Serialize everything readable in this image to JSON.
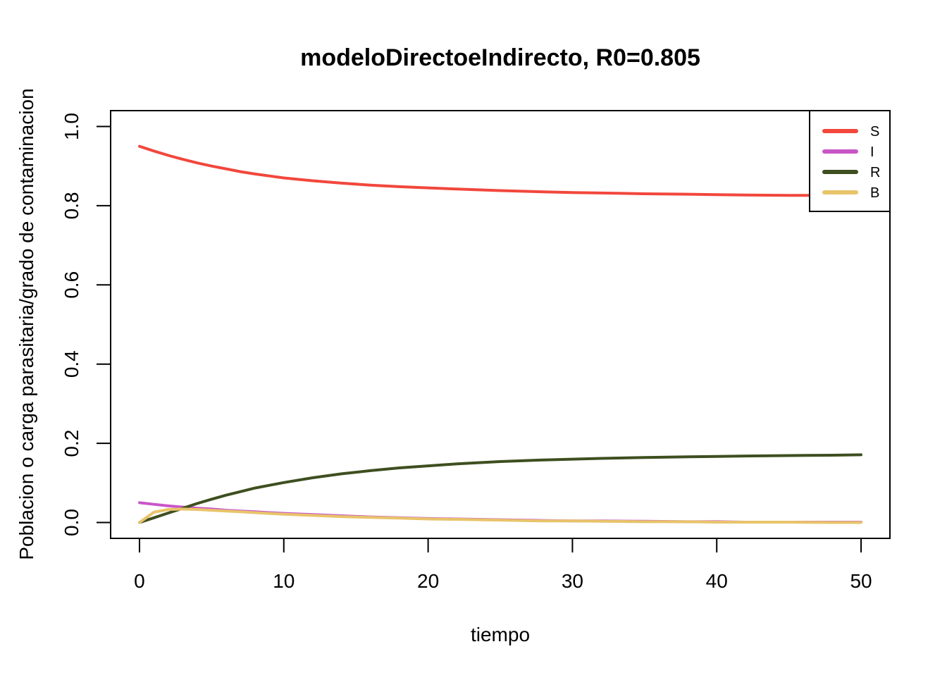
{
  "chart_data": {
    "type": "line",
    "title": "modeloDirectoeIndirecto, R0=0.805",
    "xlabel": "tiempo",
    "ylabel": "Poblacion o carga parasitaria/grado de contaminacion",
    "xlim": [
      -2,
      52
    ],
    "ylim": [
      -0.04,
      1.04
    ],
    "x_ticks": [
      0,
      10,
      20,
      30,
      40,
      50
    ],
    "x_tick_labels": [
      "0",
      "10",
      "20",
      "30",
      "40",
      "50"
    ],
    "y_ticks": [
      0.0,
      0.2,
      0.4,
      0.6,
      0.8,
      1.0
    ],
    "y_tick_labels": [
      "0.0",
      "0.2",
      "0.4",
      "0.6",
      "0.8",
      "1.0"
    ],
    "grid": false,
    "legend_position": "top-right",
    "x": [
      0,
      1,
      2,
      3,
      4,
      5,
      6,
      7,
      8,
      9,
      10,
      12,
      14,
      16,
      18,
      20,
      22,
      25,
      28,
      30,
      32,
      35,
      38,
      40,
      42,
      45,
      48,
      50
    ],
    "series": [
      {
        "name": "S",
        "color": "#F2473C",
        "values": [
          0.95,
          0.938,
          0.927,
          0.917,
          0.908,
          0.9,
          0.893,
          0.886,
          0.88,
          0.875,
          0.87,
          0.863,
          0.857,
          0.852,
          0.848,
          0.845,
          0.842,
          0.838,
          0.835,
          0.833,
          0.832,
          0.83,
          0.829,
          0.828,
          0.827,
          0.826,
          0.826,
          0.825
        ]
      },
      {
        "name": "I",
        "color": "#C956C8",
        "values": [
          0.05,
          0.046,
          0.042,
          0.039,
          0.036,
          0.034,
          0.031,
          0.029,
          0.027,
          0.025,
          0.023,
          0.02,
          0.017,
          0.014,
          0.012,
          0.01,
          0.009,
          0.007,
          0.005,
          0.004,
          0.004,
          0.003,
          0.002,
          0.002,
          0.001,
          0.001,
          0.001,
          0.001
        ]
      },
      {
        "name": "R",
        "color": "#3E4F20",
        "values": [
          0.0,
          0.012,
          0.024,
          0.036,
          0.048,
          0.059,
          0.069,
          0.078,
          0.087,
          0.094,
          0.101,
          0.113,
          0.123,
          0.131,
          0.138,
          0.143,
          0.148,
          0.154,
          0.158,
          0.16,
          0.162,
          0.164,
          0.166,
          0.167,
          0.168,
          0.169,
          0.17,
          0.171
        ]
      },
      {
        "name": "B",
        "color": "#E8C46A",
        "values": [
          0.0,
          0.026,
          0.033,
          0.034,
          0.033,
          0.031,
          0.029,
          0.027,
          0.025,
          0.023,
          0.021,
          0.018,
          0.015,
          0.013,
          0.011,
          0.009,
          0.008,
          0.006,
          0.004,
          0.004,
          0.003,
          0.002,
          0.002,
          0.001,
          0.001,
          0.001,
          0.0,
          0.0
        ]
      }
    ]
  }
}
